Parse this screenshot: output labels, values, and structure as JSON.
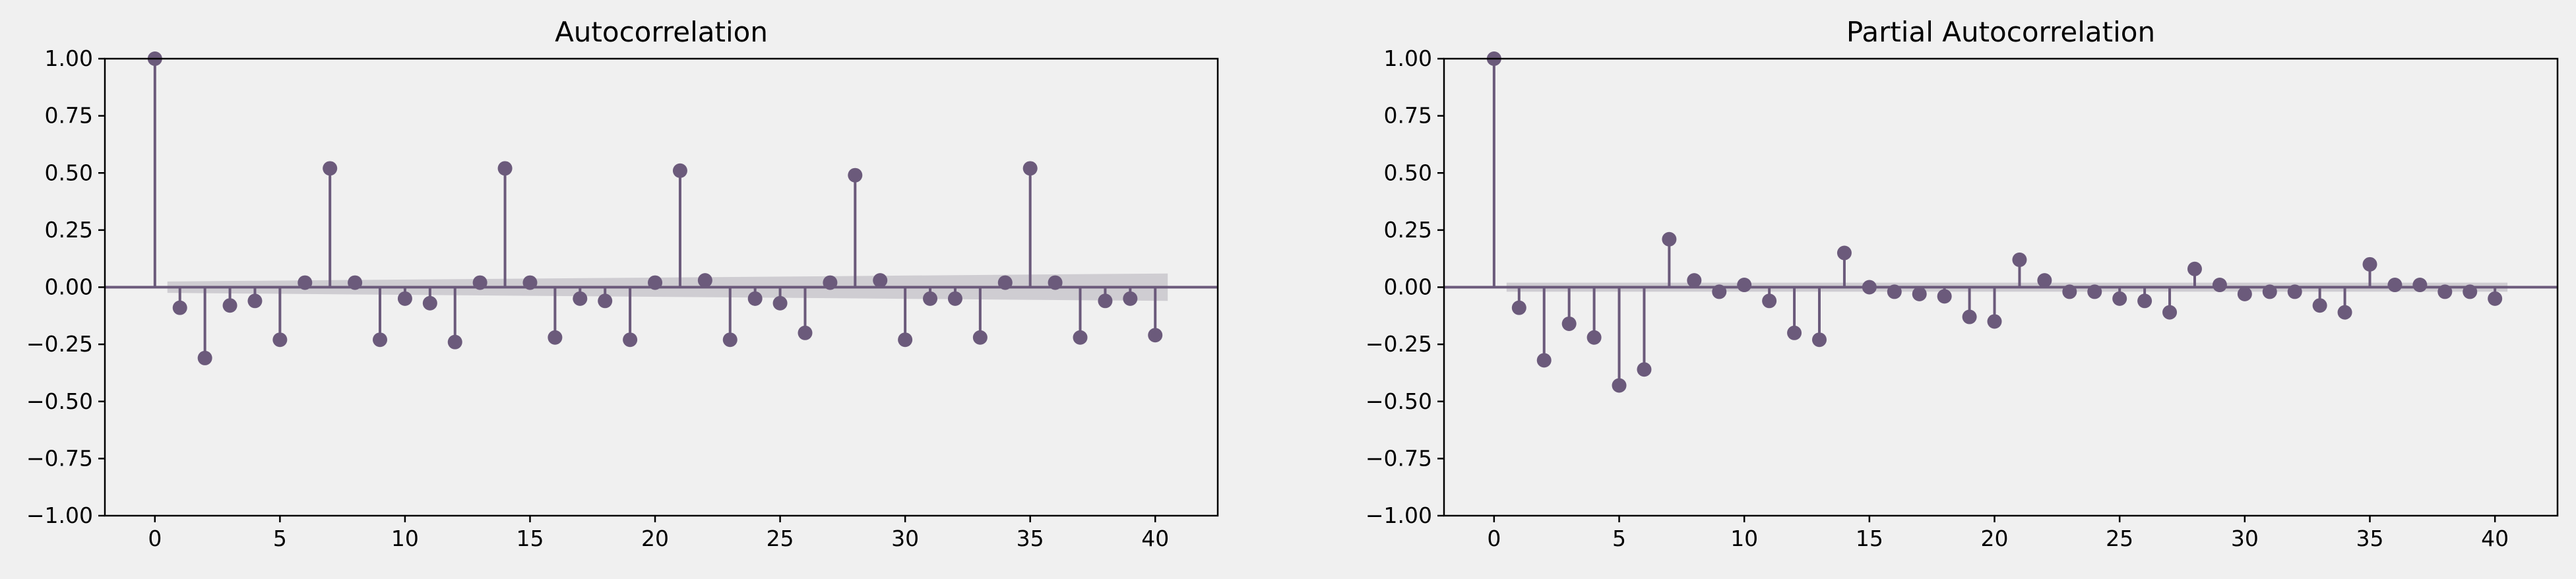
{
  "chart_data": [
    {
      "type": "stem",
      "title": "Autocorrelation",
      "xlabel": "",
      "ylabel": "",
      "xlim": [
        -2,
        42.5
      ],
      "ylim": [
        -1.0,
        1.0
      ],
      "x_ticks": [
        0,
        5,
        10,
        15,
        20,
        25,
        30,
        35,
        40
      ],
      "x_tick_labels": [
        "0",
        "5",
        "10",
        "15",
        "20",
        "25",
        "30",
        "35",
        "40"
      ],
      "y_ticks": [
        -1.0,
        -0.75,
        -0.5,
        -0.25,
        0.0,
        0.25,
        0.5,
        0.75,
        1.0
      ],
      "y_tick_labels": [
        "−1.00",
        "−0.75",
        "−0.50",
        "−0.25",
        "0.00",
        "0.25",
        "0.50",
        "0.75",
        "1.00"
      ],
      "grid": false,
      "lags": [
        0,
        1,
        2,
        3,
        4,
        5,
        6,
        7,
        8,
        9,
        10,
        11,
        12,
        13,
        14,
        15,
        16,
        17,
        18,
        19,
        20,
        21,
        22,
        23,
        24,
        25,
        26,
        27,
        28,
        29,
        30,
        31,
        32,
        33,
        34,
        35,
        36,
        37,
        38,
        39,
        40
      ],
      "values": [
        1.0,
        -0.09,
        -0.31,
        -0.08,
        -0.06,
        -0.23,
        0.02,
        0.52,
        0.02,
        -0.23,
        -0.05,
        -0.07,
        -0.24,
        0.02,
        0.52,
        0.02,
        -0.22,
        -0.05,
        -0.06,
        -0.23,
        0.02,
        0.51,
        0.03,
        -0.23,
        -0.05,
        -0.07,
        -0.2,
        0.02,
        0.49,
        0.03,
        -0.23,
        -0.05,
        -0.05,
        -0.22,
        0.02,
        0.52,
        0.02,
        -0.22,
        -0.06,
        -0.05,
        -0.21
      ],
      "confidence_band": {
        "lags": [
          0.5,
          40.5
        ],
        "upper": [
          0.025,
          0.06
        ],
        "lower": [
          -0.025,
          -0.06
        ]
      },
      "colors": {
        "stem": "#6b5a7b",
        "band": "#c9c7cc"
      }
    },
    {
      "type": "stem",
      "title": "Partial Autocorrelation",
      "xlabel": "",
      "ylabel": "",
      "xlim": [
        -2,
        42.5
      ],
      "ylim": [
        -1.0,
        1.0
      ],
      "x_ticks": [
        0,
        5,
        10,
        15,
        20,
        25,
        30,
        35,
        40
      ],
      "x_tick_labels": [
        "0",
        "5",
        "10",
        "15",
        "20",
        "25",
        "30",
        "35",
        "40"
      ],
      "y_ticks": [
        -1.0,
        -0.75,
        -0.5,
        -0.25,
        0.0,
        0.25,
        0.5,
        0.75,
        1.0
      ],
      "y_tick_labels": [
        "−1.00",
        "−0.75",
        "−0.50",
        "−0.25",
        "0.00",
        "0.25",
        "0.50",
        "0.75",
        "1.00"
      ],
      "grid": false,
      "lags": [
        0,
        1,
        2,
        3,
        4,
        5,
        6,
        7,
        8,
        9,
        10,
        11,
        12,
        13,
        14,
        15,
        16,
        17,
        18,
        19,
        20,
        21,
        22,
        23,
        24,
        25,
        26,
        27,
        28,
        29,
        30,
        31,
        32,
        33,
        34,
        35,
        36,
        37,
        38,
        39,
        40
      ],
      "values": [
        1.0,
        -0.09,
        -0.32,
        -0.16,
        -0.22,
        -0.43,
        -0.36,
        0.21,
        0.03,
        -0.02,
        0.01,
        -0.06,
        -0.2,
        -0.23,
        0.15,
        0.0,
        -0.02,
        -0.03,
        -0.04,
        -0.13,
        -0.15,
        0.12,
        0.03,
        -0.02,
        -0.02,
        -0.05,
        -0.06,
        -0.11,
        0.08,
        0.01,
        -0.03,
        -0.02,
        -0.02,
        -0.08,
        -0.11,
        0.1,
        0.01,
        0.01,
        -0.02,
        -0.02,
        -0.05
      ],
      "confidence_band": {
        "lags": [
          0.5,
          40.5
        ],
        "upper": [
          0.02,
          0.02
        ],
        "lower": [
          -0.02,
          -0.02
        ]
      },
      "colors": {
        "stem": "#6b5a7b",
        "band": "#c9c7cc"
      }
    }
  ]
}
